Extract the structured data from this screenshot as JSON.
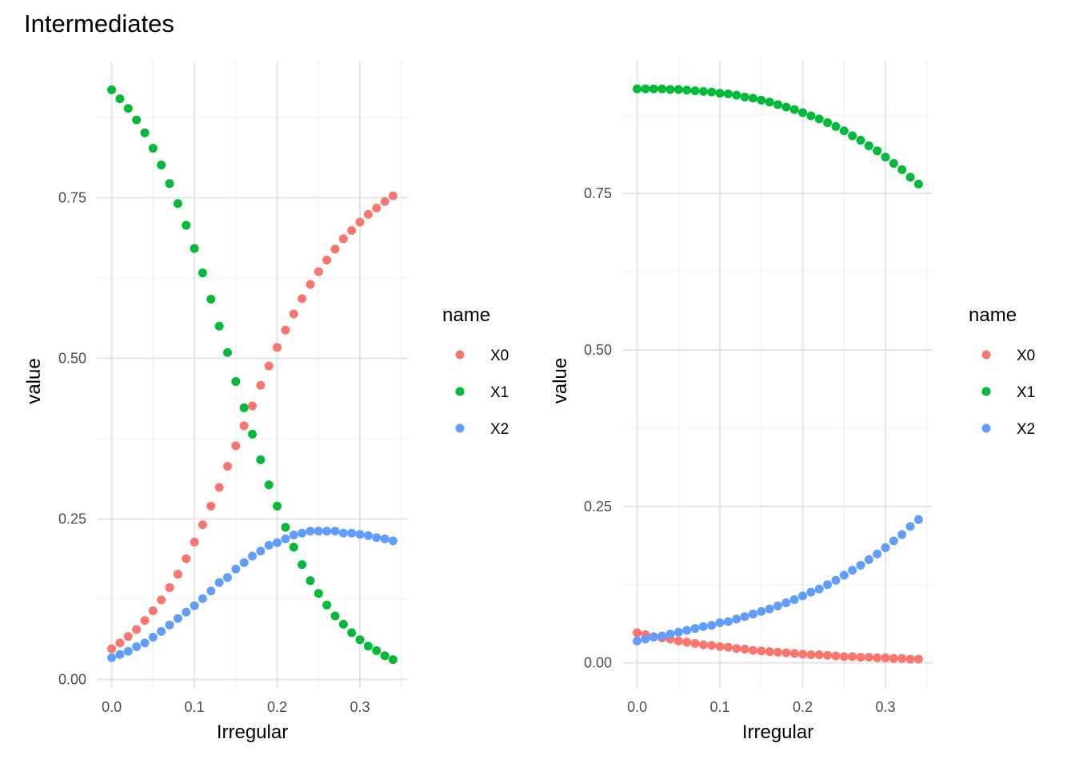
{
  "chart_data": {
    "title": "Intermediates",
    "type": "scatter",
    "colors": {
      "X0": "#F8766D",
      "X1": "#00BA38",
      "X2": "#619CFF"
    },
    "panels": [
      {
        "type": "scatter",
        "xlabel": "Irregular",
        "ylabel": "value",
        "xlim": [
          -0.017,
          0.357
        ],
        "ylim": [
          -0.013,
          0.962
        ],
        "xticks": [
          "0.0",
          "0.1",
          "0.2",
          "0.3"
        ],
        "xtick_values": [
          0,
          0.1,
          0.2,
          0.3
        ],
        "yticks": [
          "0.00",
          "0.25",
          "0.50",
          "0.75"
        ],
        "ytick_values": [
          0,
          0.25,
          0.5,
          0.75
        ],
        "grid": true,
        "legend": {
          "title": "name",
          "position": "right",
          "entries": [
            "X0",
            "X1",
            "X2"
          ]
        },
        "x": [
          0,
          0.01,
          0.02,
          0.03,
          0.04,
          0.05,
          0.06,
          0.07,
          0.08,
          0.09,
          0.1,
          0.11,
          0.12,
          0.13,
          0.14,
          0.15,
          0.16,
          0.17,
          0.18,
          0.19,
          0.2,
          0.21,
          0.22,
          0.23,
          0.24,
          0.25,
          0.26,
          0.27,
          0.28,
          0.29,
          0.3,
          0.31,
          0.32,
          0.33,
          0.34
        ],
        "series": [
          {
            "name": "X0",
            "values": [
              0.048,
              0.057,
              0.067,
              0.078,
              0.092,
              0.107,
              0.124,
              0.143,
              0.164,
              0.188,
              0.214,
              0.241,
              0.27,
              0.299,
              0.332,
              0.364,
              0.395,
              0.426,
              0.458,
              0.488,
              0.517,
              0.544,
              0.569,
              0.593,
              0.615,
              0.635,
              0.653,
              0.67,
              0.686,
              0.699,
              0.712,
              0.724,
              0.734,
              0.744,
              0.753
            ]
          },
          {
            "name": "X1",
            "values": [
              0.918,
              0.904,
              0.889,
              0.871,
              0.851,
              0.827,
              0.801,
              0.772,
              0.741,
              0.707,
              0.671,
              0.633,
              0.592,
              0.55,
              0.509,
              0.464,
              0.423,
              0.382,
              0.342,
              0.303,
              0.27,
              0.237,
              0.206,
              0.179,
              0.154,
              0.134,
              0.116,
              0.099,
              0.086,
              0.073,
              0.062,
              0.052,
              0.045,
              0.037,
              0.031
            ]
          },
          {
            "name": "X2",
            "values": [
              0.034,
              0.039,
              0.044,
              0.051,
              0.057,
              0.066,
              0.075,
              0.085,
              0.095,
              0.105,
              0.115,
              0.126,
              0.138,
              0.151,
              0.159,
              0.172,
              0.182,
              0.192,
              0.2,
              0.209,
              0.213,
              0.219,
              0.225,
              0.228,
              0.231,
              0.231,
              0.231,
              0.231,
              0.228,
              0.228,
              0.226,
              0.224,
              0.221,
              0.219,
              0.216
            ]
          }
        ]
      },
      {
        "type": "scatter",
        "xlabel": "Irregular",
        "ylabel": "value",
        "xlim": [
          -0.017,
          0.357
        ],
        "ylim": [
          -0.04,
          0.962
        ],
        "xticks": [
          "0.0",
          "0.1",
          "0.2",
          "0.3"
        ],
        "xtick_values": [
          0,
          0.1,
          0.2,
          0.3
        ],
        "yticks": [
          "0.00",
          "0.25",
          "0.50",
          "0.75"
        ],
        "ytick_values": [
          0,
          0.25,
          0.5,
          0.75
        ],
        "grid": true,
        "legend": {
          "title": "name",
          "position": "right",
          "entries": [
            "X0",
            "X1",
            "X2"
          ]
        },
        "x": [
          0,
          0.01,
          0.02,
          0.03,
          0.04,
          0.05,
          0.06,
          0.07,
          0.08,
          0.09,
          0.1,
          0.11,
          0.12,
          0.13,
          0.14,
          0.15,
          0.16,
          0.17,
          0.18,
          0.19,
          0.2,
          0.21,
          0.22,
          0.23,
          0.24,
          0.25,
          0.26,
          0.27,
          0.28,
          0.29,
          0.3,
          0.31,
          0.32,
          0.33,
          0.34
        ],
        "series": [
          {
            "name": "X0",
            "values": [
              0.048,
              0.045,
              0.042,
              0.04,
              0.038,
              0.035,
              0.033,
              0.031,
              0.029,
              0.028,
              0.026,
              0.025,
              0.023,
              0.022,
              0.02,
              0.019,
              0.018,
              0.017,
              0.016,
              0.015,
              0.014,
              0.013,
              0.013,
              0.012,
              0.011,
              0.01,
              0.01,
              0.009,
              0.009,
              0.008,
              0.008,
              0.007,
              0.007,
              0.006,
              0.006
            ]
          },
          {
            "name": "X1",
            "values": [
              0.917,
              0.917,
              0.917,
              0.917,
              0.916,
              0.916,
              0.915,
              0.914,
              0.913,
              0.912,
              0.91,
              0.909,
              0.907,
              0.904,
              0.902,
              0.899,
              0.896,
              0.892,
              0.888,
              0.884,
              0.879,
              0.874,
              0.869,
              0.863,
              0.857,
              0.85,
              0.842,
              0.835,
              0.826,
              0.818,
              0.808,
              0.798,
              0.788,
              0.776,
              0.765
            ]
          },
          {
            "name": "X2",
            "values": [
              0.035,
              0.038,
              0.041,
              0.043,
              0.046,
              0.049,
              0.052,
              0.055,
              0.058,
              0.06,
              0.064,
              0.066,
              0.07,
              0.074,
              0.078,
              0.082,
              0.086,
              0.091,
              0.096,
              0.101,
              0.107,
              0.113,
              0.118,
              0.125,
              0.132,
              0.14,
              0.148,
              0.156,
              0.165,
              0.174,
              0.184,
              0.195,
              0.205,
              0.218,
              0.229
            ]
          }
        ]
      }
    ]
  }
}
